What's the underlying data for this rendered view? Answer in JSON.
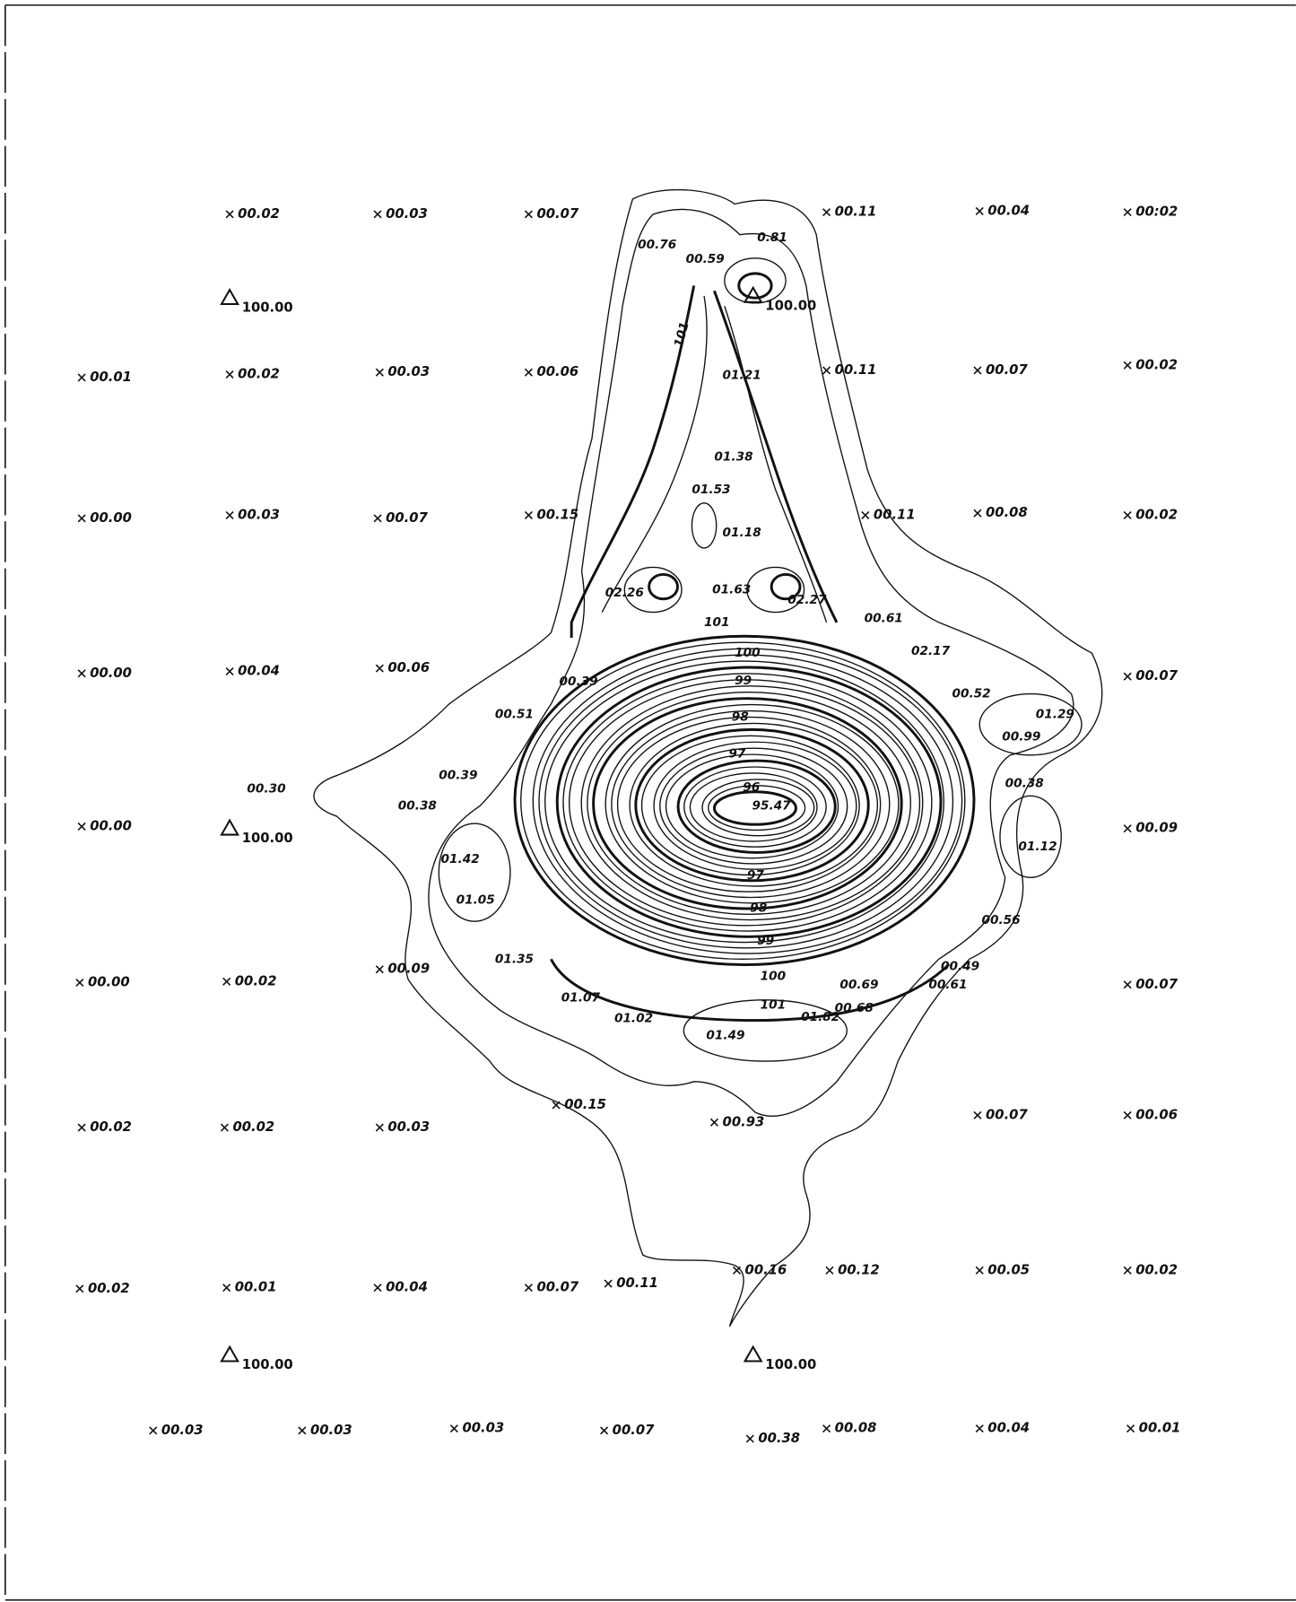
{
  "spot_heights": [
    "00.02",
    "00.03",
    "00.07",
    "00.11",
    "00.04",
    "00:02",
    "00.01",
    "00.02",
    "00.03",
    "00.06",
    "00.11",
    "00.07",
    "00.02",
    "00.00",
    "00.03",
    "00.07",
    "00.15",
    "00.11",
    "00.08",
    "00.02",
    "00.00",
    "00.04",
    "00.06",
    "00.07",
    "00.00",
    "00.09",
    "00.00",
    "00.02",
    "00.09",
    "00.07",
    "00.02",
    "00.02",
    "00.03",
    "00.15",
    "00.93",
    "00.07",
    "00.06",
    "00.02",
    "00.01",
    "00.04",
    "00.07",
    "00.11",
    "00.16",
    "00.12",
    "00.05",
    "00.02",
    "00.03",
    "00.03",
    "00.03",
    "00.07",
    "00.38",
    "00.08",
    "00.04",
    "00.01"
  ],
  "benchmarks": [
    "100.00",
    "100.00",
    "100.00",
    "100.00",
    "100.00"
  ],
  "point_labels": [
    "00.76",
    "0.81",
    "00.59",
    "01.21",
    "01.38",
    "01.53",
    "01.18",
    "02.26",
    "01.63",
    "02.27",
    "00.61",
    "02.17",
    "00.39",
    "00.51",
    "00.52",
    "01.29",
    "00.99",
    "00.39",
    "00.30",
    "00.38",
    "00.38",
    "95.47",
    "01.12",
    "01.42",
    "01.05",
    "00.56",
    "01.35",
    "00.49",
    "00.69",
    "00.61",
    "01.07",
    "01.02",
    "00.68",
    "01.82",
    "01.49"
  ],
  "contour_labels": [
    "101",
    "101",
    "100",
    "99",
    "98",
    "97",
    "96",
    "97",
    "98",
    "99",
    "100",
    "101"
  ]
}
